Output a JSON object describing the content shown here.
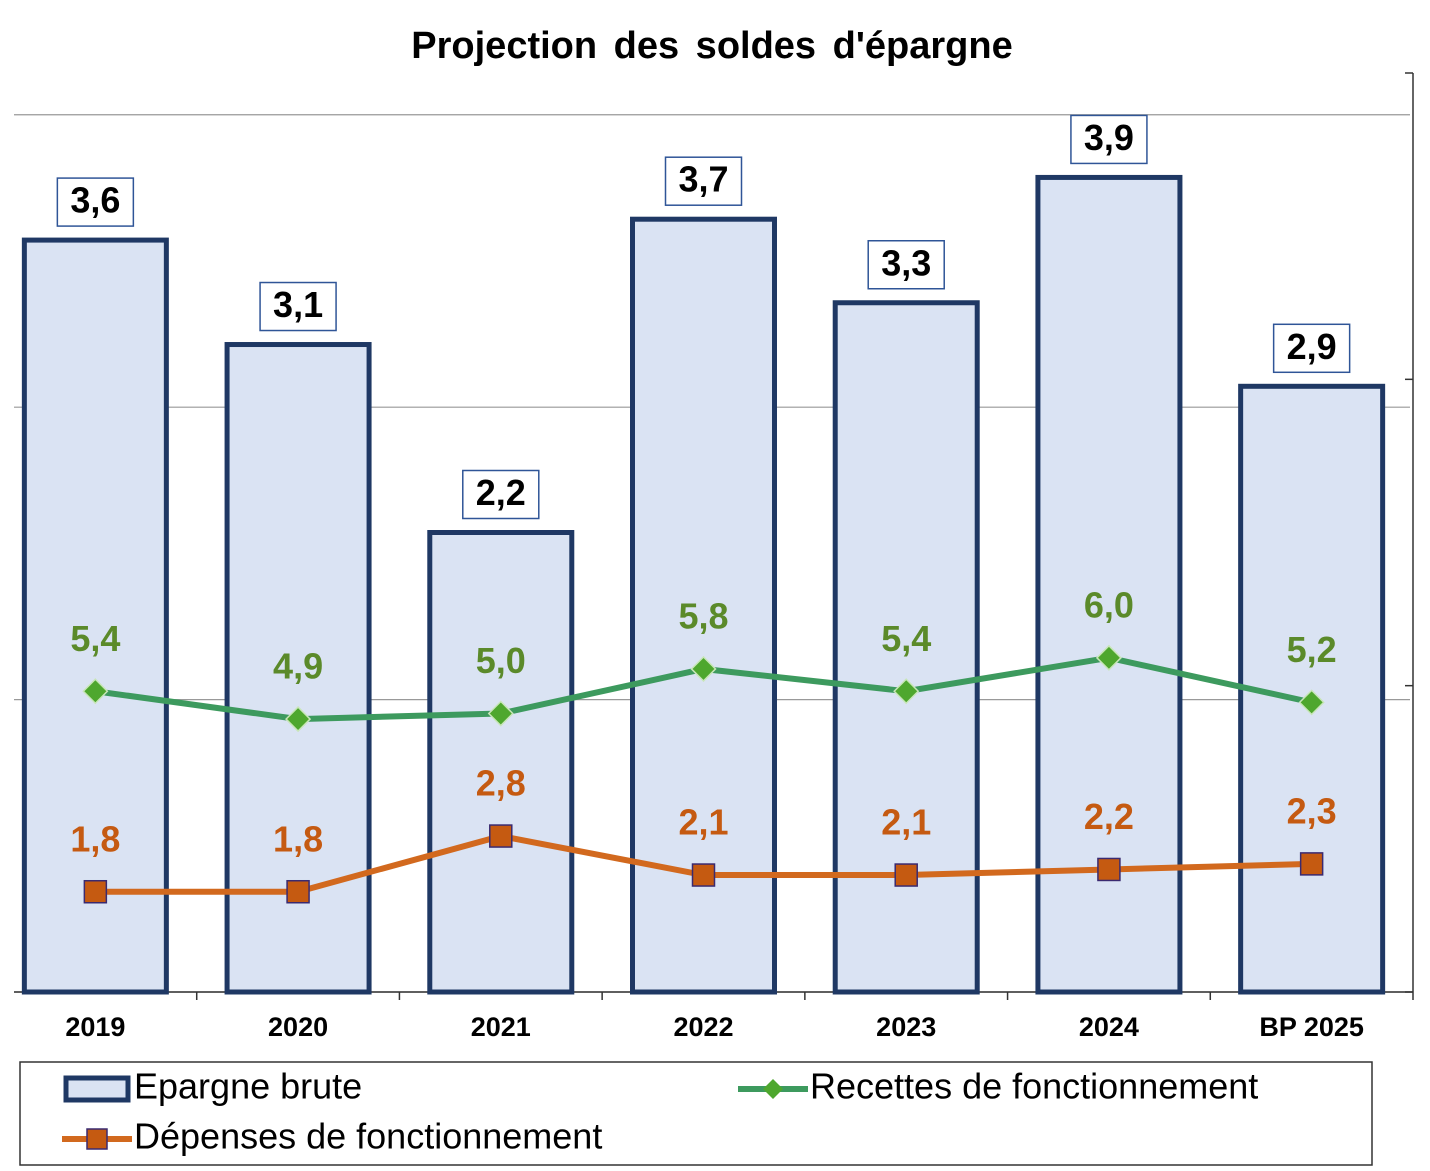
{
  "chart_data": {
    "type": "bar",
    "title": "Projection des soldes d'épargne",
    "categories": [
      "2019",
      "2020",
      "2021",
      "2022",
      "2023",
      "2024",
      "BP 2025"
    ],
    "ylim": [
      0,
      4.4
    ],
    "yticks": [
      0,
      1.4,
      2.8,
      4.2
    ],
    "y2lim": [
      0,
      16.5
    ],
    "y2ticks": [
      0,
      5.5,
      11,
      16.5
    ],
    "grid": true,
    "legend": "bottom",
    "series": [
      {
        "name": "Epargne brute",
        "type": "bar",
        "color": "#dae3f3",
        "edge": "#1f3864",
        "values": [
          3.6,
          3.1,
          2.2,
          3.7,
          3.3,
          3.9,
          2.9
        ],
        "value_labels": [
          "3,6",
          "3,1",
          "2,2",
          "3,7",
          "3,3",
          "3,9",
          "2,9"
        ]
      },
      {
        "name": "Recettes de fonctionnement",
        "type": "line",
        "axis": "y2",
        "color": "#3d9a5e",
        "marker_color": "#4ea72e",
        "label_color": "#5b8a2a",
        "values": [
          5.4,
          4.9,
          5.0,
          5.8,
          5.4,
          6.0,
          5.2
        ],
        "value_labels": [
          "5,4",
          "4,9",
          "5,0",
          "5,8",
          "5,4",
          "6,0",
          "5,2"
        ]
      },
      {
        "name": "Dépenses de fonctionnement",
        "type": "line",
        "axis": "y2",
        "color": "#d2691e",
        "marker_color": "#c55a11",
        "label_color": "#c55a11",
        "values": [
          1.8,
          1.8,
          2.8,
          2.1,
          2.1,
          2.2,
          2.3
        ],
        "value_labels": [
          "1,8",
          "1,8",
          "2,8",
          "2,1",
          "2,1",
          "2,2",
          "2,3"
        ]
      }
    ]
  }
}
